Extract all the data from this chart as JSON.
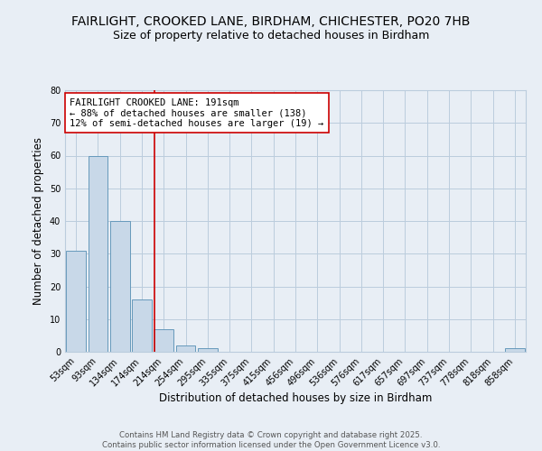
{
  "title_line1": "FAIRLIGHT, CROOKED LANE, BIRDHAM, CHICHESTER, PO20 7HB",
  "title_line2": "Size of property relative to detached houses in Birdham",
  "xlabel": "Distribution of detached houses by size in Birdham",
  "ylabel": "Number of detached properties",
  "categories": [
    "53sqm",
    "93sqm",
    "134sqm",
    "174sqm",
    "214sqm",
    "254sqm",
    "295sqm",
    "335sqm",
    "375sqm",
    "415sqm",
    "456sqm",
    "496sqm",
    "536sqm",
    "576sqm",
    "617sqm",
    "657sqm",
    "697sqm",
    "737sqm",
    "778sqm",
    "818sqm",
    "858sqm"
  ],
  "values": [
    31,
    60,
    40,
    16,
    7,
    2,
    1,
    0,
    0,
    0,
    0,
    0,
    0,
    0,
    0,
    0,
    0,
    0,
    0,
    0,
    1
  ],
  "bar_color": "#c8d8e8",
  "bar_edge_color": "#6699bb",
  "grid_color": "#bbccdd",
  "background_color": "#e8eef5",
  "vline_x_index": 3.58,
  "vline_color": "#cc0000",
  "annotation_text": "FAIRLIGHT CROOKED LANE: 191sqm\n← 88% of detached houses are smaller (138)\n12% of semi-detached houses are larger (19) →",
  "annotation_box_color": "#ffffff",
  "annotation_box_edge": "#cc0000",
  "ylim": [
    0,
    80
  ],
  "yticks": [
    0,
    10,
    20,
    30,
    40,
    50,
    60,
    70,
    80
  ],
  "footer": "Contains HM Land Registry data © Crown copyright and database right 2025.\nContains public sector information licensed under the Open Government Licence v3.0.",
  "title_fontsize": 10,
  "subtitle_fontsize": 9,
  "tick_fontsize": 7,
  "label_fontsize": 8.5,
  "annotation_fontsize": 7.5
}
